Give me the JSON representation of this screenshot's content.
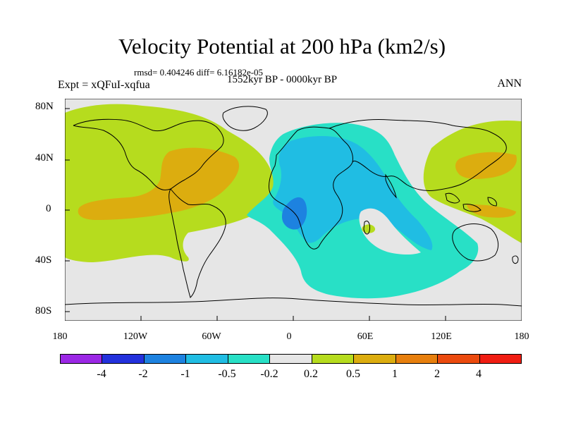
{
  "title": "Velocity Potential at 200 hPa (km2/s)",
  "stats": "rmsd= 0.404246 diff= 6.16182e-05",
  "expt": "Expt = xQFuI-xqfua",
  "period": "1552kyr BP - 0000kyr BP",
  "season": "ANN",
  "y_labels": [
    "80N",
    "40N",
    "0",
    "40S",
    "80S"
  ],
  "x_labels": [
    "180",
    "120W",
    "60W",
    "0",
    "60E",
    "120E",
    "180"
  ],
  "legend": {
    "colors": [
      "#9b27e5",
      "#2331dc",
      "#1d82e0",
      "#20bde3",
      "#28e0c6",
      "#e6e6e6",
      "#b6dc1e",
      "#dcad0f",
      "#e77f0d",
      "#eb4a0e",
      "#f01d12"
    ],
    "labels": [
      "-4",
      "-2",
      "-1",
      "-0.5",
      "-0.2",
      "0.2",
      "0.5",
      "1",
      "2",
      "4"
    ]
  },
  "colors": {
    "neutral": "#e6e6e6",
    "pos_weak": "#b6dc1e",
    "pos_mid": "#dcad0f",
    "pos_strong": "#e77f0d",
    "neg_weak": "#28e0c6",
    "neg_mid": "#20bde3",
    "neg_strong": "#1d82e0"
  }
}
